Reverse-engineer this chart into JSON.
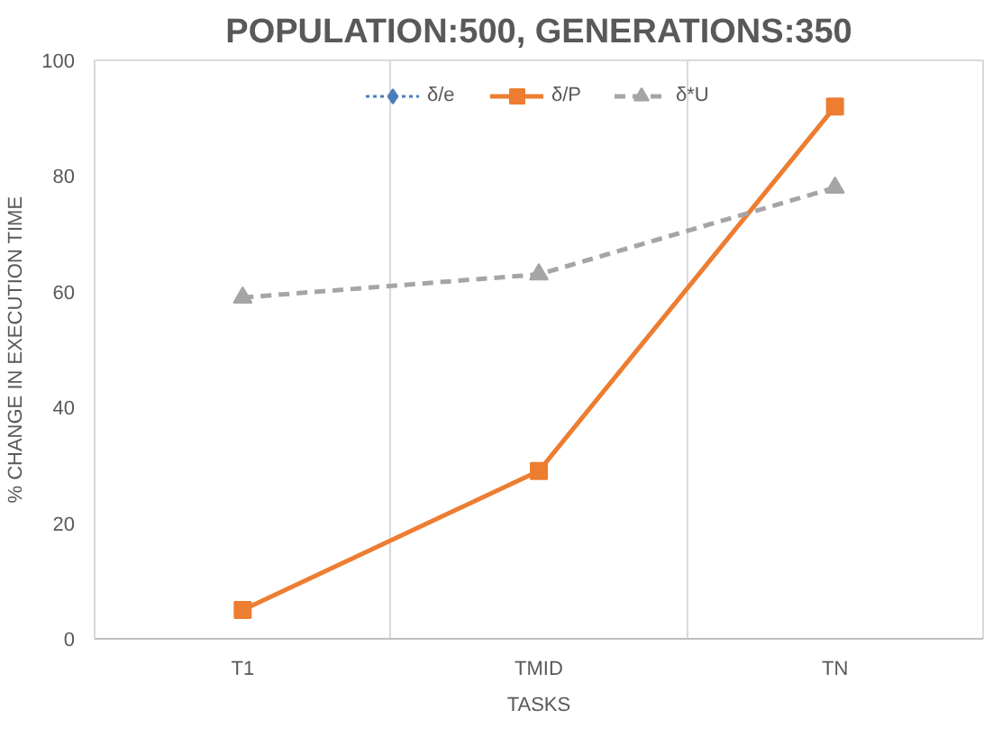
{
  "chart_data": {
    "type": "line",
    "title": "POPULATION:500, GENERATIONS:350",
    "xlabel": "TASKS",
    "ylabel": "% CHANGE IN EXECUTION TIME",
    "categories": [
      "T1",
      "TMID",
      "TN"
    ],
    "series": [
      {
        "name": "δ/e",
        "color": "#4a7ebb",
        "values": [
          null,
          null,
          null
        ],
        "marker": "diamond",
        "line_style": "dotted"
      },
      {
        "name": "δ/P",
        "color": "#ed7d31",
        "values": [
          5,
          29,
          92
        ],
        "marker": "square",
        "line_style": "solid"
      },
      {
        "name": "δ*U",
        "color": "#a5a5a5",
        "values": [
          59,
          63,
          78
        ],
        "marker": "triangle",
        "line_style": "dashed"
      }
    ],
    "ylim": [
      0,
      100
    ],
    "yticks": [
      0,
      20,
      40,
      60,
      80,
      100
    ],
    "grid": "x",
    "legend": "top"
  }
}
